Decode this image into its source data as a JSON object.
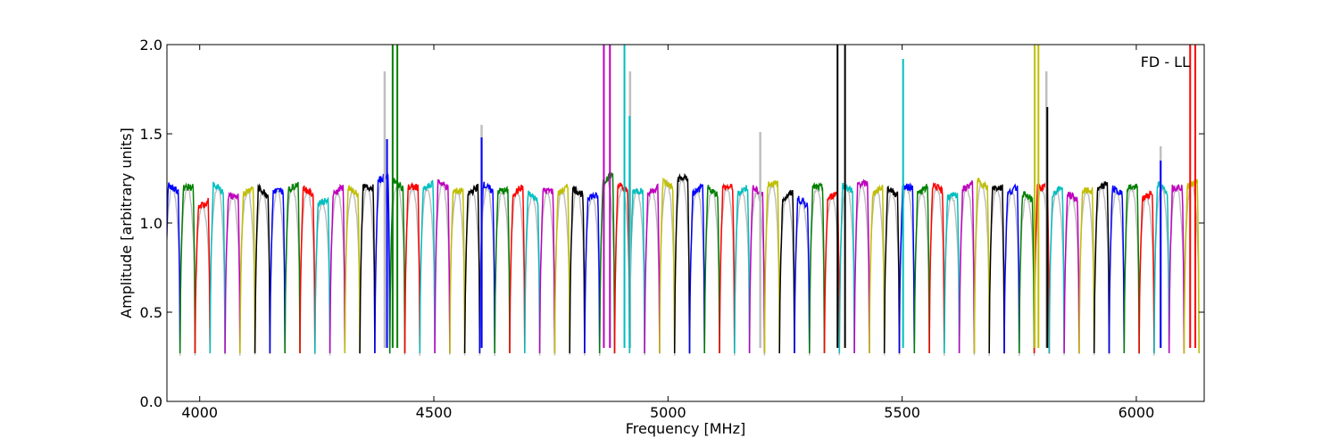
{
  "chart_data": {
    "type": "line",
    "title": "",
    "annotation": "FD - LL",
    "xlabel": "Frequency [MHz]",
    "ylabel": "Amplitude [arbitrary units]",
    "xlim": [
      3930,
      6145
    ],
    "ylim": [
      0.0,
      2.0
    ],
    "xticks": [
      4000,
      4500,
      5000,
      5500,
      6000
    ],
    "yticks": [
      0.0,
      0.5,
      1.0,
      1.5,
      2.0
    ],
    "xtick_labels": [
      "4000",
      "4500",
      "5000",
      "5500",
      "6000"
    ],
    "ytick_labels": [
      "0.0",
      "0.5",
      "1.0",
      "1.5",
      "2.0"
    ],
    "grid": false,
    "legend": "none",
    "background_series_color": "#bfbfbf",
    "channel_width_mhz": 32,
    "channel_start_mhz": 3926,
    "color_cycle": [
      "#0000ff",
      "#008000",
      "#ff0000",
      "#00bfbf",
      "#bf00bf",
      "#bfbf00",
      "#000000"
    ],
    "channel_levels": [
      1.2,
      1.2,
      1.1,
      1.2,
      1.15,
      1.18,
      1.18,
      1.18,
      1.2,
      1.18,
      1.12,
      1.18,
      1.18,
      1.2,
      1.25,
      1.22,
      1.2,
      1.2,
      1.22,
      1.18,
      1.18,
      1.2,
      1.18,
      1.18,
      1.15,
      1.18,
      1.18,
      1.18,
      1.15,
      1.25,
      1.2,
      1.18,
      1.18,
      1.22,
      1.25,
      1.18,
      1.18,
      1.2,
      1.18,
      1.18,
      1.22,
      1.15,
      1.12,
      1.2,
      1.15,
      1.2,
      1.22,
      1.18,
      1.18,
      1.2,
      1.18,
      1.2,
      1.15,
      1.2,
      1.22,
      1.2,
      1.18,
      1.15,
      1.2,
      1.18,
      1.15,
      1.18,
      1.2,
      1.18,
      1.2,
      1.15,
      1.2,
      1.2,
      1.22
    ],
    "channel_floor": 0.27,
    "spikes": [
      {
        "x": 4395,
        "ymax": 1.85,
        "series": "background"
      },
      {
        "x": 4400,
        "ymax": 1.47,
        "series": "blue"
      },
      {
        "x": 4412,
        "ymax": 2.0,
        "series": "green"
      },
      {
        "x": 4422,
        "ymax": 2.0,
        "series": "green"
      },
      {
        "x": 4602,
        "ymax": 1.55,
        "series": "background"
      },
      {
        "x": 4602,
        "ymax": 1.48,
        "series": "blue"
      },
      {
        "x": 4863,
        "ymax": 2.0,
        "series": "magenta"
      },
      {
        "x": 4876,
        "ymax": 2.0,
        "series": "magenta"
      },
      {
        "x": 4907,
        "ymax": 2.0,
        "series": "cyan"
      },
      {
        "x": 4919,
        "ymax": 1.85,
        "series": "background"
      },
      {
        "x": 4918,
        "ymax": 1.6,
        "series": "cyan"
      },
      {
        "x": 5197,
        "ymax": 1.51,
        "series": "background"
      },
      {
        "x": 5362,
        "ymax": 2.0,
        "series": "black"
      },
      {
        "x": 5378,
        "ymax": 2.0,
        "series": "black"
      },
      {
        "x": 5502,
        "ymax": 1.92,
        "series": "cyan"
      },
      {
        "x": 5783,
        "ymax": 2.0,
        "series": "olive"
      },
      {
        "x": 5791,
        "ymax": 2.0,
        "series": "olive"
      },
      {
        "x": 5808,
        "ymax": 1.85,
        "series": "background"
      },
      {
        "x": 5810,
        "ymax": 1.65,
        "series": "black"
      },
      {
        "x": 6052,
        "ymax": 1.43,
        "series": "background"
      },
      {
        "x": 6052,
        "ymax": 1.35,
        "series": "blue"
      },
      {
        "x": 6115,
        "ymax": 2.0,
        "series": "red"
      },
      {
        "x": 6126,
        "ymax": 2.0,
        "series": "red"
      }
    ]
  }
}
